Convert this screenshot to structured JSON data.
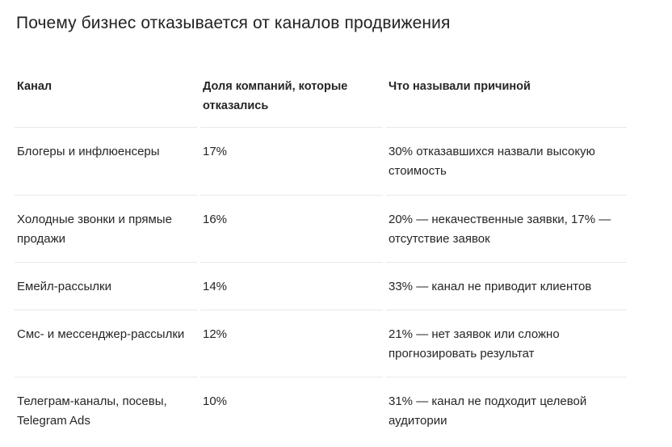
{
  "title": "Почему бизнес отказывается от каналов продвижения",
  "table": {
    "headers": [
      "Канал",
      "Доля компаний, которые отказались",
      "Что называли причиной"
    ],
    "rows": [
      [
        "Блогеры и инфлюенсеры",
        "17%",
        "30% отказавшихся назвали высокую стоимость"
      ],
      [
        "Холодные звонки и прямые продажи",
        "16%",
        "20% — некачественные заявки, 17% — отсутствие заявок"
      ],
      [
        "Емейл-рассылки",
        "14%",
        "33% — канал не приводит клиентов"
      ],
      [
        "Смс- и мессенджер-рассылки",
        "12%",
        "21% — нет заявок или сложно прогнозировать результат"
      ],
      [
        "Телеграм-каналы, посевы, Telegram Ads",
        "10%",
        "31% — канал не подходит целевой аудитории"
      ]
    ]
  }
}
